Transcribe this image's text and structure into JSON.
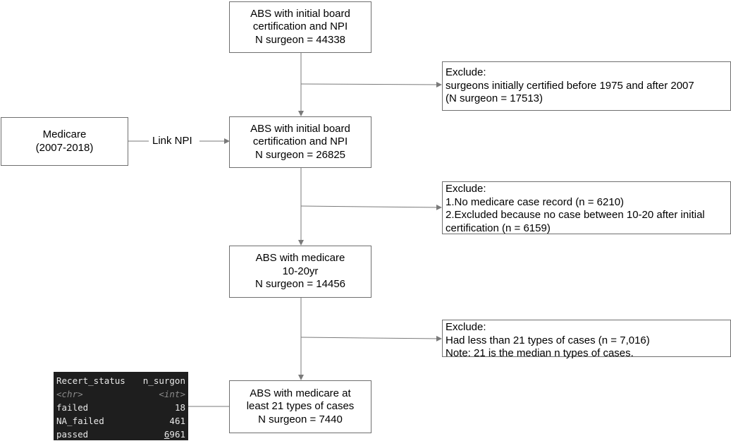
{
  "boxes": {
    "b1": [
      "ABS with initial board",
      "certification and NPI",
      "N surgeon = 44338"
    ],
    "b2": [
      "ABS with initial board",
      "certification and NPI",
      "N surgeon = 26825"
    ],
    "b3": [
      "ABS with medicare",
      "10-20yr",
      "N surgeon = 14456"
    ],
    "b4": [
      "ABS with medicare at",
      "least 21 types of cases",
      "N surgeon = 7440"
    ],
    "medicare": [
      "Medicare",
      "(2007-2018)"
    ]
  },
  "link_label": "Link NPI",
  "excludes": {
    "e1": [
      "Exclude:",
      "surgeons initially certified before 1975 and after 2007",
      "(N surgeon = 17513)"
    ],
    "e2": [
      "Exclude:",
      "1.No medicare case record (n = 6210)",
      "2.Excluded because no case between 10-20 after initial",
      "certification (n = 6159)"
    ],
    "e3": [
      "Exclude:",
      "Had less than 21 types of cases (n = 7,016)",
      "Note: 21 is the median n types of cases."
    ]
  },
  "table": {
    "headers": [
      "Recert_status",
      "n_surgon"
    ],
    "types": [
      "<chr>",
      "<int>"
    ],
    "rows": [
      {
        "status": "failed",
        "n": "18"
      },
      {
        "status": "NA_failed",
        "n": "461"
      },
      {
        "status": "passed",
        "n_first_digit": "6",
        "n_rest": "961"
      }
    ]
  },
  "colors": {
    "line": "#7a7a7a",
    "box_border": "#6f6f6f",
    "console_bg": "#1e1e1e",
    "console_text": "#e8e8e8",
    "console_type": "#8a8a8a"
  }
}
